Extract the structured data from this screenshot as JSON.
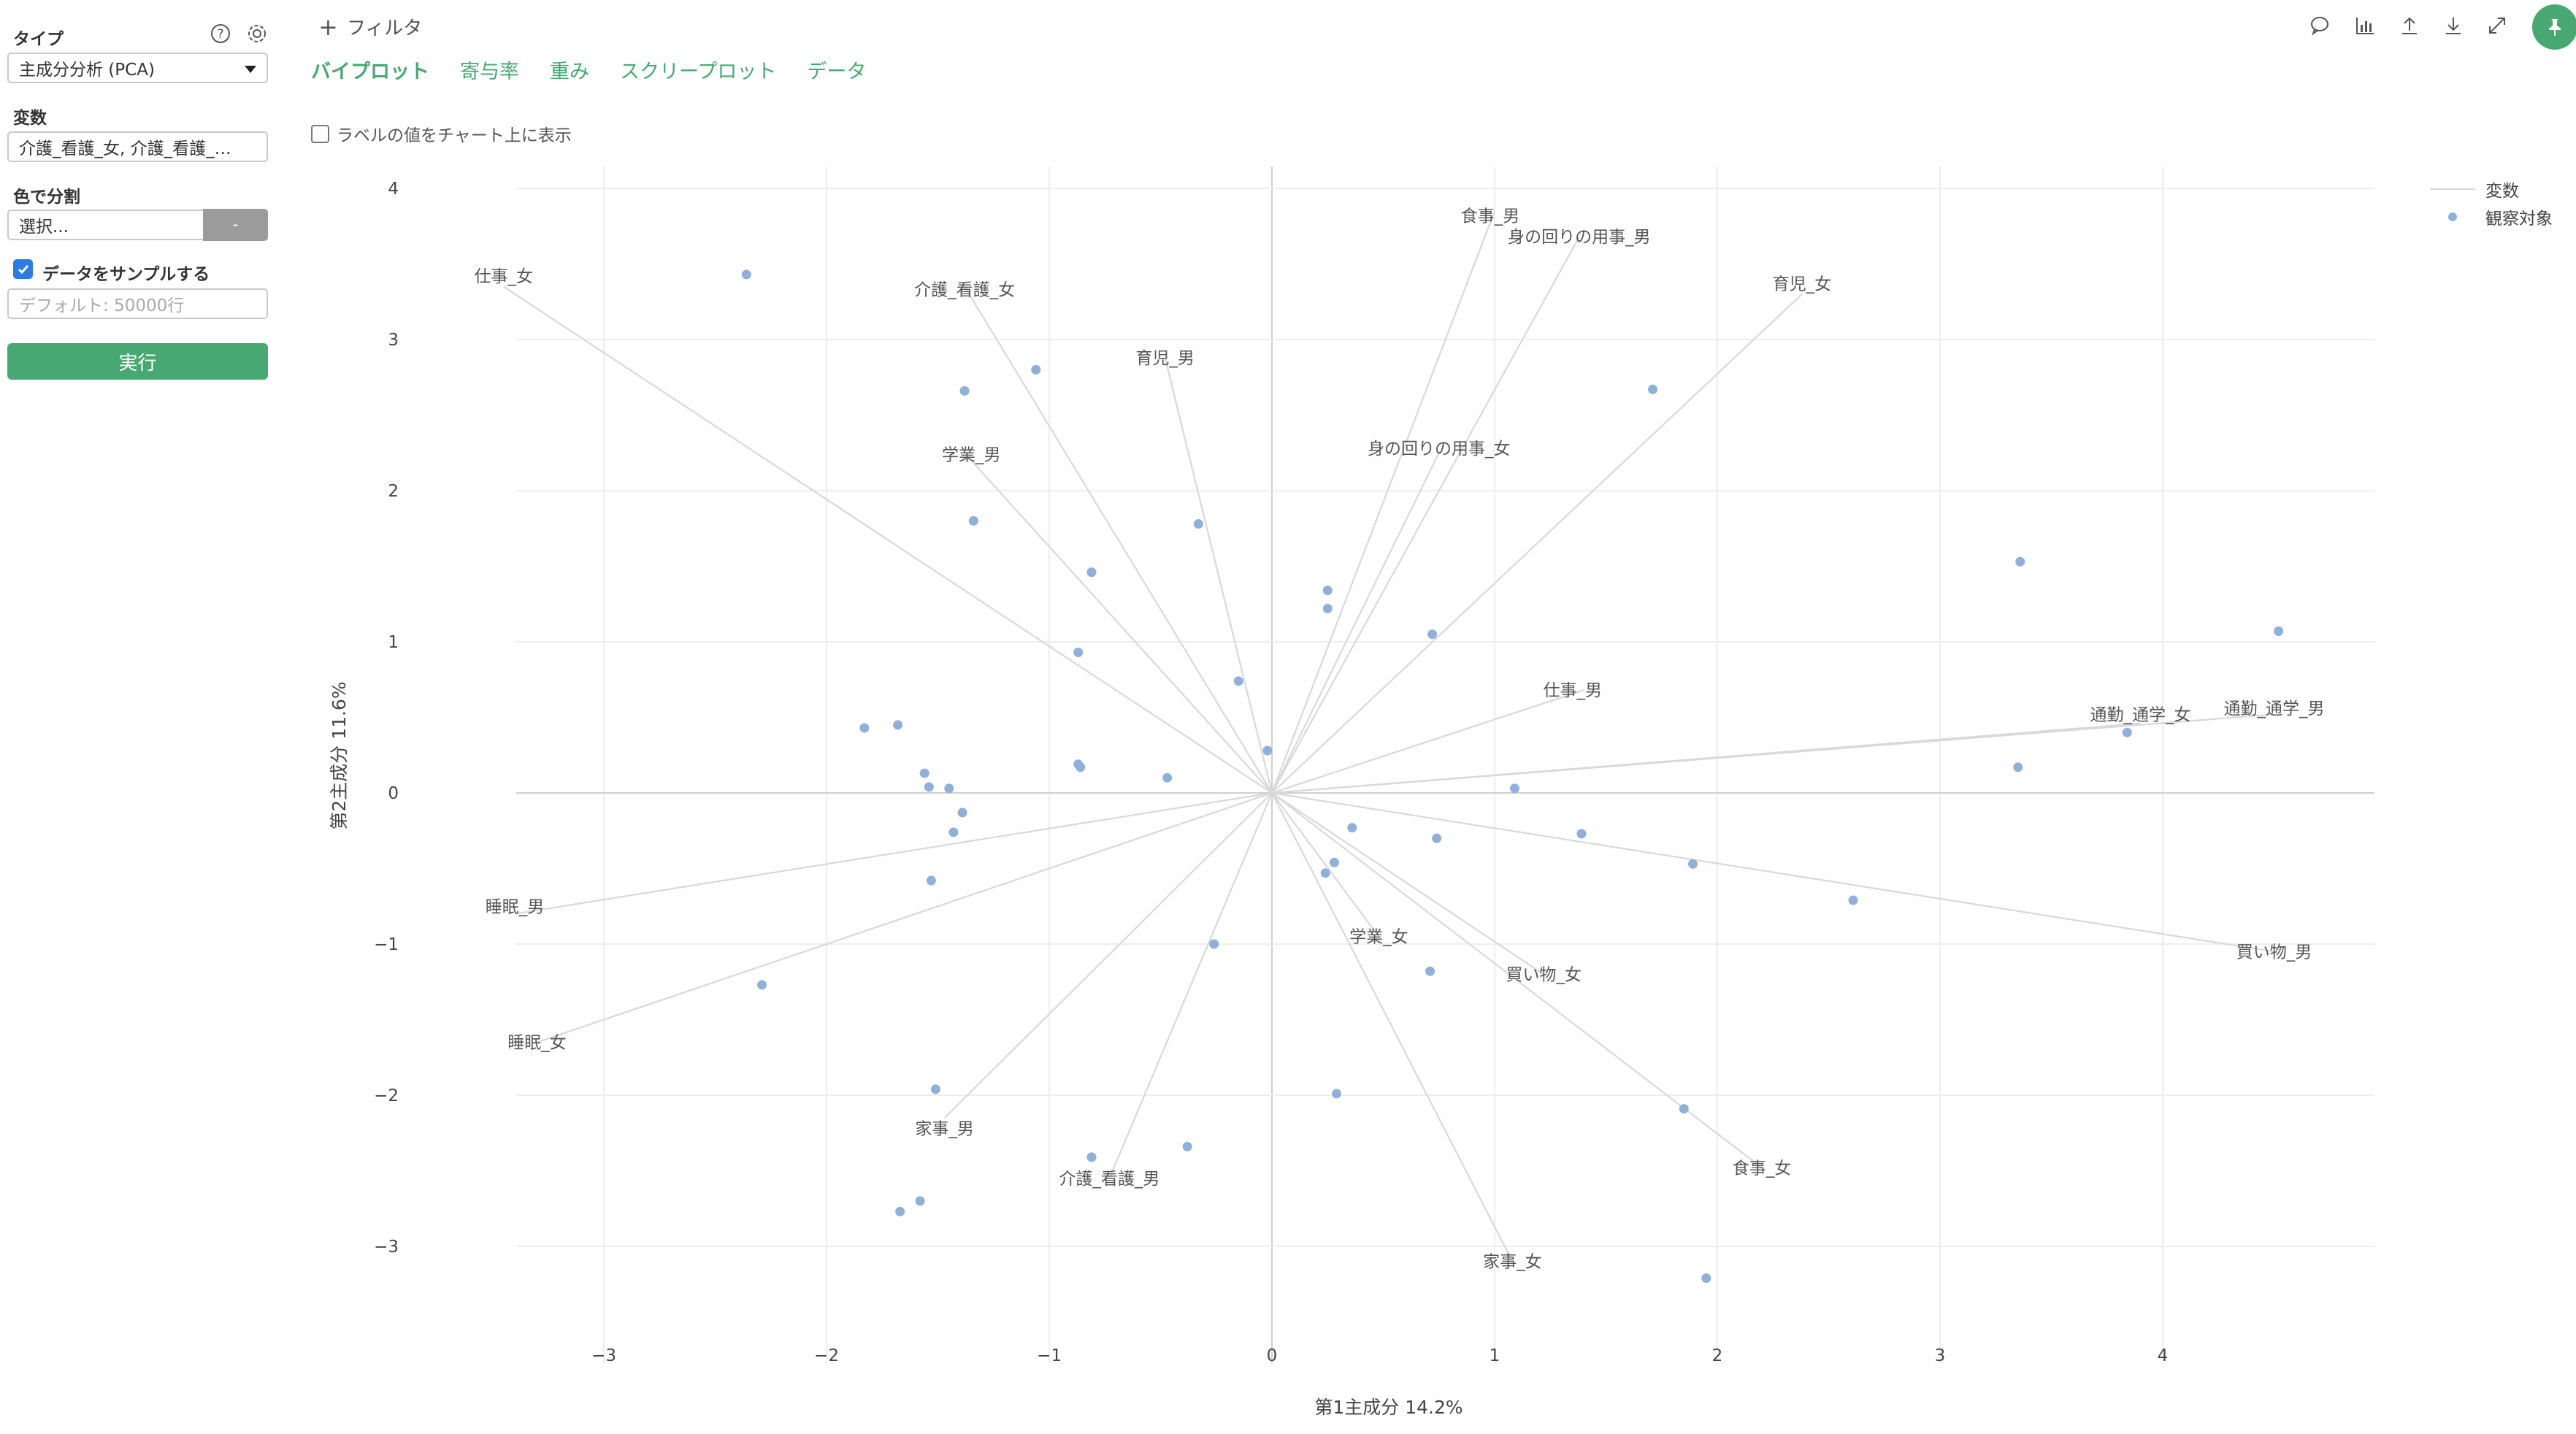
{
  "sidebar": {
    "type_label": "タイプ",
    "type_value": "主成分分析 (PCA)",
    "variables_label": "変数",
    "variables_value": "介護_看護_女, 介護_看護_…",
    "color_split_label": "色で分割",
    "color_split_placeholder": "選択...",
    "color_split_button": "-",
    "sample_label": "データをサンプルする",
    "sample_placeholder": "デフォルト: 50000行",
    "run_label": "実行"
  },
  "header": {
    "filter_label": "フィルタ",
    "tabs": [
      {
        "label": "バイプロット",
        "active": true
      },
      {
        "label": "寄与率",
        "active": false
      },
      {
        "label": "重み",
        "active": false
      },
      {
        "label": "スクリープロット",
        "active": false
      },
      {
        "label": "データ",
        "active": false
      }
    ],
    "show_labels_text": "ラベルの値をチャート上に表示"
  },
  "colors": {
    "accent": "#48a872",
    "point": "#8fb0d8",
    "vector": "#d9d9d9",
    "grid": "#eeeeee",
    "checkbox": "#2d7be5"
  },
  "chart_data": {
    "type": "scatter",
    "xlabel": "第1主成分 14.2%",
    "ylabel": "第2主成分 11.6%",
    "xlim": [
      -3.0,
      4.95
    ],
    "ylim": [
      -3.0,
      4.0
    ],
    "x_ticks": [
      "−3",
      "−2",
      "−1",
      "0",
      "1",
      "2",
      "3",
      "4"
    ],
    "y_ticks": [
      "−3",
      "−2",
      "−1",
      "0",
      "1",
      "2",
      "3",
      "4"
    ],
    "x_tick_values": [
      -3,
      -2,
      -1,
      0,
      1,
      2,
      3,
      4
    ],
    "y_tick_values": [
      -3,
      -2,
      -1,
      0,
      1,
      2,
      3,
      4
    ],
    "legend": [
      {
        "label": "変数",
        "kind": "line"
      },
      {
        "label": "観察対象",
        "kind": "point"
      }
    ],
    "variables": [
      {
        "name": "仕事_女",
        "x": -3.45,
        "y": 3.35,
        "lx": -3.45,
        "ly": 3.42
      },
      {
        "name": "介護_看護_女",
        "x": -1.38,
        "y": 3.35,
        "lx": -1.38,
        "ly": 3.33
      },
      {
        "name": "育児_男",
        "x": -0.48,
        "y": 2.88,
        "lx": -0.48,
        "ly": 2.88
      },
      {
        "name": "学業_男",
        "x": -1.35,
        "y": 2.2,
        "lx": -1.35,
        "ly": 2.24
      },
      {
        "name": "食事_男",
        "x": 1.0,
        "y": 3.85,
        "lx": 0.98,
        "ly": 3.82
      },
      {
        "name": "身の回りの用事_男",
        "x": 1.38,
        "y": 3.68,
        "lx": 1.38,
        "ly": 3.68
      },
      {
        "name": "育児_女",
        "x": 2.38,
        "y": 3.3,
        "lx": 2.38,
        "ly": 3.37
      },
      {
        "name": "身の回りの用事_女",
        "x": 0.75,
        "y": 2.25,
        "lx": 0.75,
        "ly": 2.28
      },
      {
        "name": "仕事_男",
        "x": 1.4,
        "y": 0.68,
        "lx": 1.35,
        "ly": 0.68
      },
      {
        "name": "通勤_通学_女",
        "x": 3.9,
        "y": 0.46,
        "lx": 3.9,
        "ly": 0.52
      },
      {
        "name": "通勤_通学_男",
        "x": 4.5,
        "y": 0.52,
        "lx": 4.5,
        "ly": 0.56
      },
      {
        "name": "買い物_男",
        "x": 4.5,
        "y": -1.05,
        "lx": 4.5,
        "ly": -1.05
      },
      {
        "name": "学業_女",
        "x": 0.48,
        "y": -0.95,
        "lx": 0.48,
        "ly": -0.95
      },
      {
        "name": "買い物_女",
        "x": 1.22,
        "y": -1.2,
        "lx": 1.22,
        "ly": -1.2
      },
      {
        "name": "食事_女",
        "x": 2.2,
        "y": -2.48,
        "lx": 2.2,
        "ly": -2.48
      },
      {
        "name": "家事_女",
        "x": 1.08,
        "y": -3.1,
        "lx": 1.08,
        "ly": -3.1
      },
      {
        "name": "介護_看護_男",
        "x": -0.73,
        "y": -2.55,
        "lx": -0.73,
        "ly": -2.55
      },
      {
        "name": "家事_男",
        "x": -1.47,
        "y": -2.15,
        "lx": -1.47,
        "ly": -2.22
      },
      {
        "name": "睡眠_男",
        "x": -3.4,
        "y": -0.8,
        "lx": -3.4,
        "ly": -0.75
      },
      {
        "name": "睡眠_女",
        "x": -3.3,
        "y": -1.65,
        "lx": -3.3,
        "ly": -1.65
      }
    ],
    "points": [
      [
        -2.36,
        3.43
      ],
      [
        -1.38,
        2.66
      ],
      [
        -1.06,
        2.8
      ],
      [
        -1.34,
        1.8
      ],
      [
        -0.81,
        1.46
      ],
      [
        -0.33,
        1.78
      ],
      [
        -0.87,
        0.93
      ],
      [
        -0.15,
        0.74
      ],
      [
        -1.83,
        0.43
      ],
      [
        -1.68,
        0.45
      ],
      [
        -1.56,
        0.13
      ],
      [
        -1.54,
        0.04
      ],
      [
        -1.45,
        0.03
      ],
      [
        -1.39,
        -0.13
      ],
      [
        -1.43,
        -0.26
      ],
      [
        -1.53,
        -0.58
      ],
      [
        -0.87,
        0.19
      ],
      [
        -0.86,
        0.17
      ],
      [
        -0.47,
        0.1
      ],
      [
        -0.02,
        0.28
      ],
      [
        0.25,
        1.34
      ],
      [
        0.25,
        1.22
      ],
      [
        0.72,
        1.05
      ],
      [
        1.71,
        2.67
      ],
      [
        3.36,
        1.53
      ],
      [
        4.52,
        1.07
      ],
      [
        3.84,
        0.4
      ],
      [
        3.35,
        0.17
      ],
      [
        1.09,
        0.03
      ],
      [
        0.36,
        -0.23
      ],
      [
        0.74,
        -0.3
      ],
      [
        1.39,
        -0.27
      ],
      [
        1.89,
        -0.47
      ],
      [
        2.61,
        -0.71
      ],
      [
        0.28,
        -0.46
      ],
      [
        0.24,
        -0.53
      ],
      [
        -0.26,
        -1.0
      ],
      [
        0.71,
        -1.18
      ],
      [
        -2.29,
        -1.27
      ],
      [
        -1.51,
        -1.96
      ],
      [
        0.29,
        -1.99
      ],
      [
        1.85,
        -2.09
      ],
      [
        -0.81,
        -2.41
      ],
      [
        -0.38,
        -2.34
      ],
      [
        -1.67,
        -2.77
      ],
      [
        -1.58,
        -2.7
      ],
      [
        1.95,
        -3.21
      ]
    ]
  }
}
